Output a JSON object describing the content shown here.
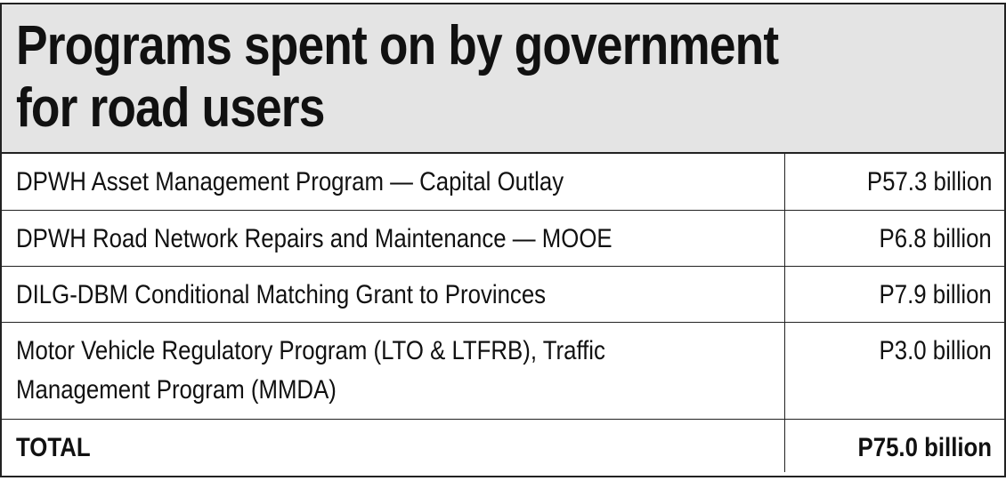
{
  "title": {
    "line1": "Programs spent on by government",
    "line2": "for road users"
  },
  "rows": [
    {
      "label": "DPWH Asset Management Program — Capital Outlay",
      "value": "P57.3 billion"
    },
    {
      "label": "DPWH Road Network Repairs and Maintenance — MOOE",
      "value": "P6.8 billion"
    },
    {
      "label": "DILG-DBM Conditional Matching Grant to Provinces",
      "value": "P7.9 billion"
    },
    {
      "label_line1": "Motor Vehicle Regulatory Program (LTO & LTFRB), Traffic",
      "label_line2": "Management Program (MMDA)",
      "value": "P3.0 billion"
    }
  ],
  "total": {
    "label": "TOTAL",
    "value": "P75.0 billion"
  }
}
